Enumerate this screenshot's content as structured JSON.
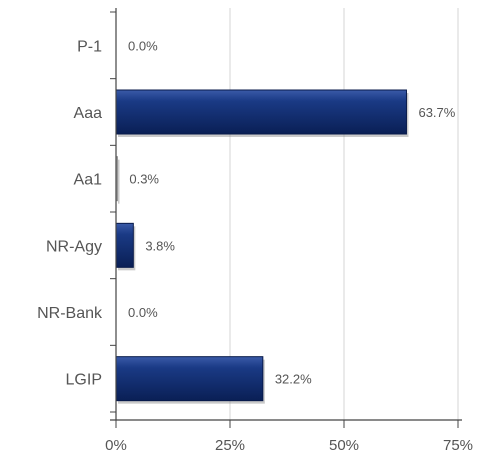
{
  "chart_data": {
    "type": "bar",
    "orientation": "horizontal",
    "categories": [
      "P-1",
      "Aaa",
      "Aa1",
      "NR-Agy",
      "NR-Bank",
      "LGIP"
    ],
    "values": [
      0.0,
      63.7,
      0.3,
      3.8,
      0.0,
      32.2
    ],
    "value_labels": [
      "0.0%",
      "63.7%",
      "0.3%",
      "3.8%",
      "0.0%",
      "32.2%"
    ],
    "xlim": [
      0,
      75
    ],
    "xticks": [
      0,
      25,
      50,
      75
    ],
    "xtick_labels": [
      "0%",
      "25%",
      "50%",
      "75%"
    ],
    "grid": true,
    "bar_color": "#0f2a6b",
    "bar_color_light": "#3a5aa8",
    "grid_color": "#d6d6d6",
    "axis_color": "#444444"
  }
}
